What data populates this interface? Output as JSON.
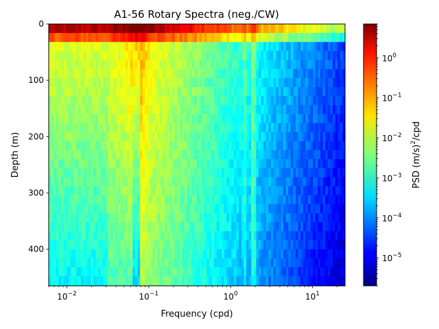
{
  "chart_data": {
    "type": "heatmap",
    "title": "A1-56 Rotary Spectra (neg./CW)",
    "xlabel": "Frequency (cpd)",
    "ylabel": "Depth (m)",
    "x_scale": "log",
    "xlim": [
      0.006,
      25
    ],
    "ylim": [
      465,
      0
    ],
    "x_ticks": [
      {
        "value": 0.01,
        "base": "10",
        "exp": "−2"
      },
      {
        "value": 0.1,
        "base": "10",
        "exp": "−1"
      },
      {
        "value": 1,
        "base": "10",
        "exp": "0"
      },
      {
        "value": 10,
        "base": "10",
        "exp": "1"
      }
    ],
    "y_ticks": [
      {
        "value": 0,
        "label": "0"
      },
      {
        "value": 100,
        "label": "100"
      },
      {
        "value": 200,
        "label": "200"
      },
      {
        "value": 300,
        "label": "300"
      },
      {
        "value": 400,
        "label": "400"
      }
    ],
    "colorbar": {
      "label_prefix": "PSD (m/s)",
      "label_exp": "2",
      "label_suffix": "/cpd",
      "scale": "log",
      "colormap": "jet",
      "range": [
        2e-06,
        7
      ],
      "ticks": [
        {
          "value": 1e-05,
          "base": "10",
          "exp": "−5"
        },
        {
          "value": 0.0001,
          "base": "10",
          "exp": "−4"
        },
        {
          "value": 0.001,
          "base": "10",
          "exp": "−3"
        },
        {
          "value": 0.01,
          "base": "10",
          "exp": "−2"
        },
        {
          "value": 0.1,
          "base": "10",
          "exp": "−1"
        },
        {
          "value": 1,
          "base": "10",
          "exp": "0"
        }
      ]
    }
  }
}
